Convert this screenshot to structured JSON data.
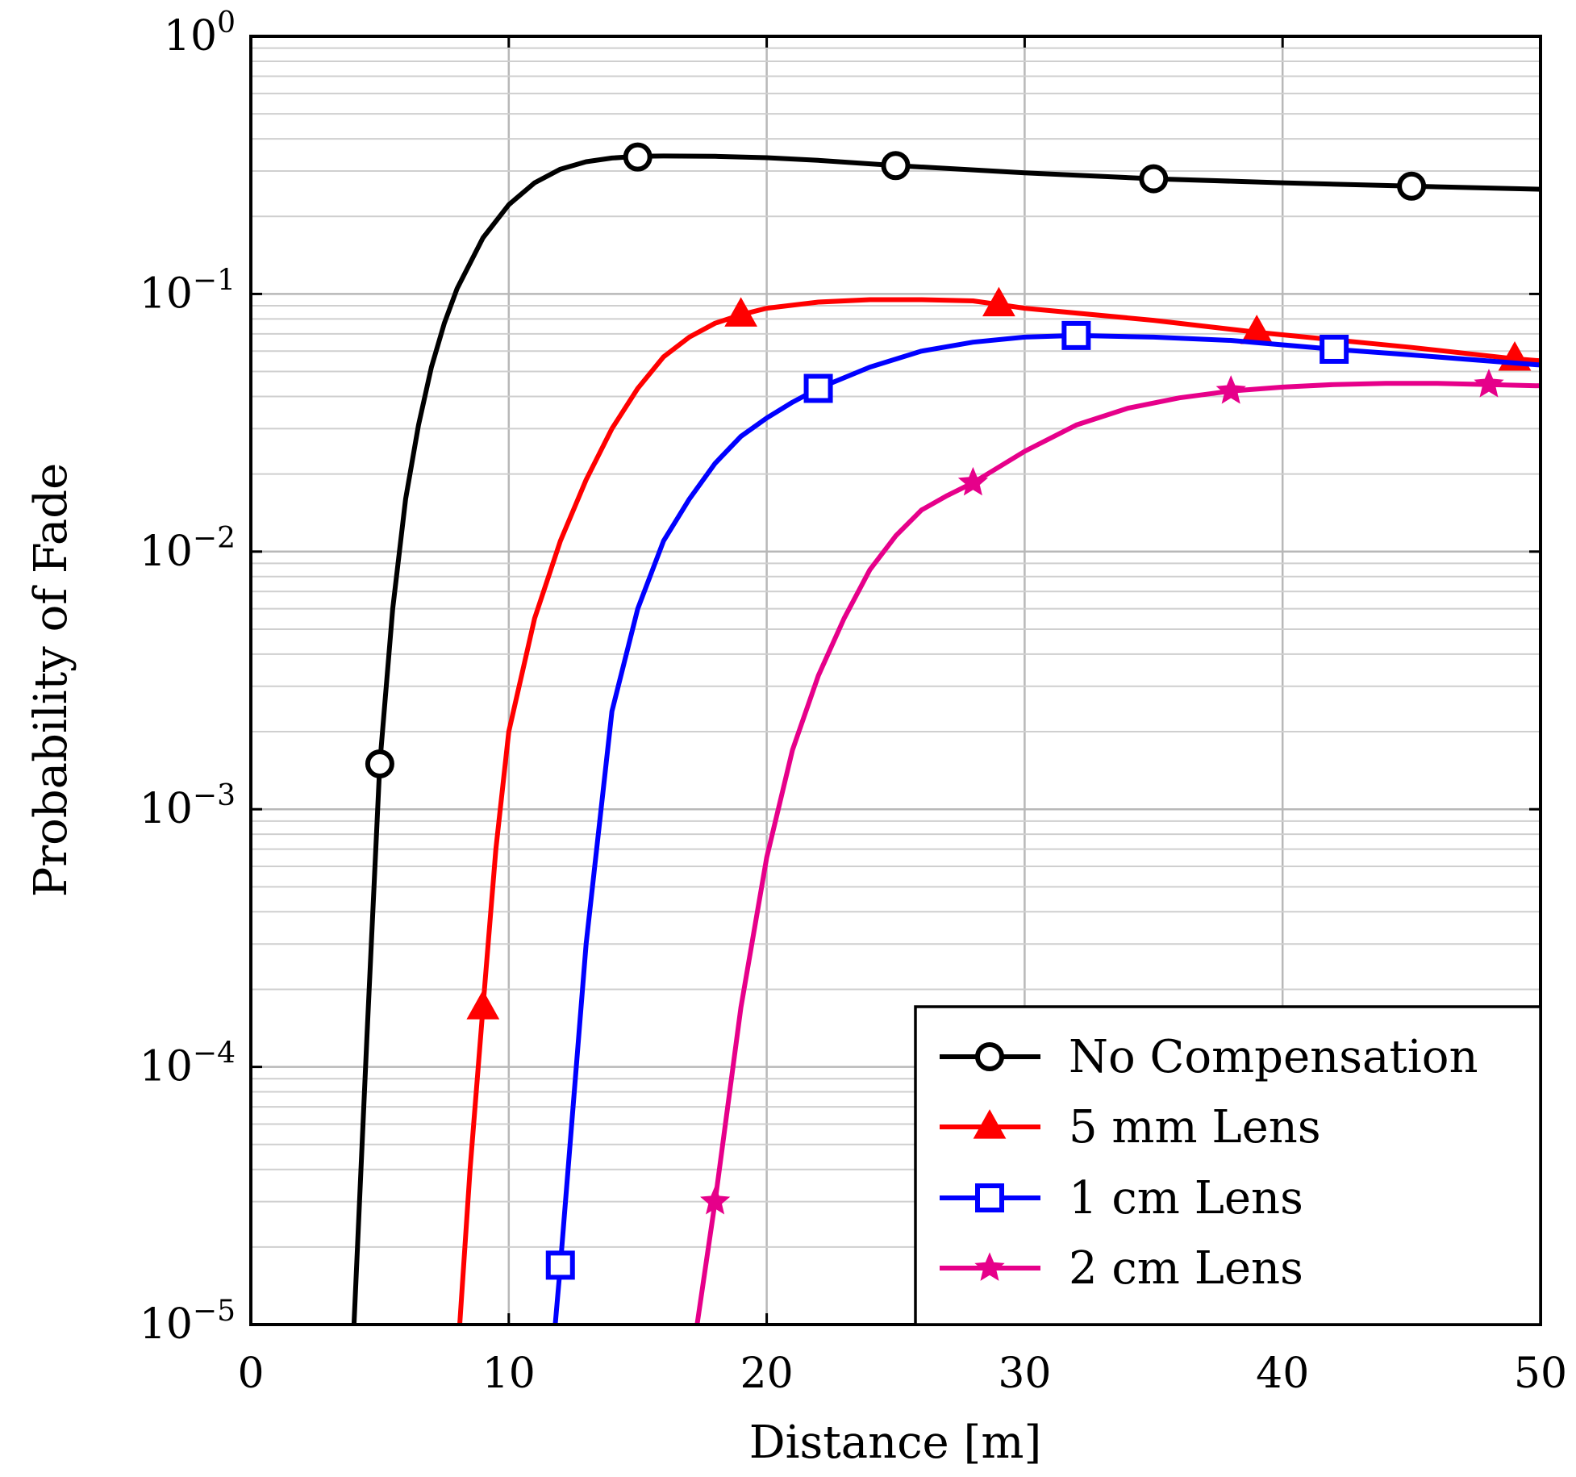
{
  "chart_data": {
    "type": "line",
    "title": "",
    "xlabel": "Distance [m]",
    "ylabel": "Probability of Fade",
    "xlim": [
      0,
      50
    ],
    "ylim": [
      1e-05,
      1
    ],
    "yscale": "log",
    "grid": true,
    "legend_position": "bottom-right",
    "x_ticks": [
      {
        "value": 0,
        "label": "0"
      },
      {
        "value": 10,
        "label": "10"
      },
      {
        "value": 20,
        "label": "20"
      },
      {
        "value": 30,
        "label": "30"
      },
      {
        "value": 40,
        "label": "40"
      },
      {
        "value": 50,
        "label": "50"
      }
    ],
    "y_ticks": [
      {
        "value": 1,
        "base": "10",
        "exp": "0"
      },
      {
        "value": 0.1,
        "base": "10",
        "exp": "−1"
      },
      {
        "value": 0.01,
        "base": "10",
        "exp": "−2"
      },
      {
        "value": 0.001,
        "base": "10",
        "exp": "−3"
      },
      {
        "value": 0.0001,
        "base": "10",
        "exp": "−4"
      },
      {
        "value": 1e-05,
        "base": "10",
        "exp": "−5"
      }
    ],
    "series": [
      {
        "name": "No Compensation",
        "color": "#000000",
        "marker": "circle",
        "x": [
          4,
          4.5,
          5,
          5.5,
          6,
          6.5,
          7,
          7.5,
          8,
          9,
          10,
          11,
          12,
          13,
          14,
          15,
          16,
          18,
          20,
          22,
          25,
          30,
          35,
          40,
          45,
          50
        ],
        "y": [
          1e-05,
          0.00013,
          0.0015,
          0.006,
          0.016,
          0.031,
          0.052,
          0.077,
          0.105,
          0.165,
          0.222,
          0.27,
          0.305,
          0.326,
          0.337,
          0.342,
          0.343,
          0.342,
          0.338,
          0.33,
          0.315,
          0.295,
          0.28,
          0.27,
          0.262,
          0.255
        ],
        "marker_x": [
          5,
          15,
          25,
          35,
          45
        ],
        "marker_y": [
          0.0015,
          0.34,
          0.315,
          0.28,
          0.262
        ]
      },
      {
        "name": "5 mm Lens",
        "color": "#ff0000",
        "marker": "triangle",
        "x": [
          8.1,
          8.5,
          9,
          9.5,
          10,
          11,
          12,
          13,
          14,
          15,
          16,
          17,
          18,
          19,
          20,
          22,
          24,
          26,
          28,
          29,
          30,
          35,
          39,
          45,
          49,
          50
        ],
        "y": [
          1e-05,
          4e-05,
          0.00017,
          0.0007,
          0.002,
          0.0055,
          0.011,
          0.019,
          0.03,
          0.043,
          0.057,
          0.068,
          0.077,
          0.083,
          0.088,
          0.093,
          0.095,
          0.095,
          0.094,
          0.091,
          0.088,
          0.079,
          0.071,
          0.062,
          0.056,
          0.055
        ],
        "marker_x": [
          9,
          19,
          29,
          39,
          49
        ],
        "marker_y": [
          0.00017,
          0.083,
          0.091,
          0.071,
          0.056
        ]
      },
      {
        "name": "1 cm Lens",
        "color": "#0000ff",
        "marker": "square",
        "x": [
          11.8,
          12,
          13,
          14,
          15,
          16,
          17,
          18,
          19,
          20,
          21,
          22,
          24,
          26,
          28,
          30,
          32,
          35,
          38,
          42,
          45,
          50
        ],
        "y": [
          1e-05,
          1.7e-05,
          0.0003,
          0.0024,
          0.006,
          0.011,
          0.016,
          0.022,
          0.028,
          0.033,
          0.038,
          0.043,
          0.052,
          0.06,
          0.065,
          0.068,
          0.069,
          0.068,
          0.066,
          0.061,
          0.058,
          0.053
        ],
        "marker_x": [
          12,
          22,
          32,
          42
        ],
        "marker_y": [
          1.7e-05,
          0.043,
          0.069,
          0.061
        ]
      },
      {
        "name": "2 cm Lens",
        "color": "#e6008a",
        "marker": "star",
        "x": [
          17.3,
          18,
          19,
          20,
          21,
          22,
          23,
          24,
          25,
          26,
          27,
          28,
          30,
          32,
          34,
          36,
          38,
          40,
          42,
          44,
          46,
          48,
          50
        ],
        "y": [
          1e-05,
          3e-05,
          0.00017,
          0.00065,
          0.0017,
          0.0033,
          0.0055,
          0.0085,
          0.0115,
          0.0145,
          0.0165,
          0.0185,
          0.0245,
          0.031,
          0.036,
          0.0395,
          0.042,
          0.0435,
          0.0445,
          0.045,
          0.045,
          0.0445,
          0.044
        ],
        "marker_x": [
          18,
          28,
          38,
          48
        ],
        "marker_y": [
          3e-05,
          0.0185,
          0.042,
          0.0445
        ]
      }
    ]
  }
}
